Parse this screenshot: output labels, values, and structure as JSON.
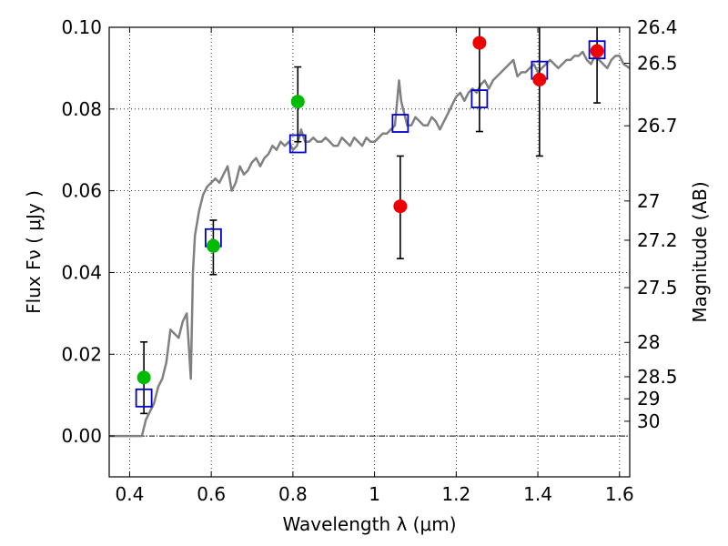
{
  "chart_data": {
    "type": "scatter",
    "xlabel": "Wavelength  λ (μm)",
    "ylabel": "Flux  Fν  ( μJy )",
    "y2label": "Magnitude (AB)",
    "xlim": [
      0.35,
      1.625
    ],
    "ylim": [
      -0.01,
      0.1
    ],
    "grid": true,
    "xticks": [
      {
        "value": 0.4,
        "label": "0.4"
      },
      {
        "value": 0.6,
        "label": "0.6"
      },
      {
        "value": 0.8,
        "label": "0.8"
      },
      {
        "value": 1.0,
        "label": "1"
      },
      {
        "value": 1.2,
        "label": "1.2"
      },
      {
        "value": 1.4,
        "label": "1.4"
      },
      {
        "value": 1.6,
        "label": "1.6"
      }
    ],
    "yticks": [
      {
        "value": 0.0,
        "label": "0.00"
      },
      {
        "value": 0.02,
        "label": "0.02"
      },
      {
        "value": 0.04,
        "label": "0.04"
      },
      {
        "value": 0.06,
        "label": "0.06"
      },
      {
        "value": 0.08,
        "label": "0.08"
      },
      {
        "value": 0.1,
        "label": "0.10"
      }
    ],
    "magnitude_ticks": [
      {
        "label": "26.4",
        "flux": 0.1
      },
      {
        "label": "26.5",
        "flux": 0.0912
      },
      {
        "label": "26.7",
        "flux": 0.0759
      },
      {
        "label": "27",
        "flux": 0.0575
      },
      {
        "label": "27.2",
        "flux": 0.0479
      },
      {
        "label": "27.5",
        "flux": 0.0363
      },
      {
        "label": "28",
        "flux": 0.0229
      },
      {
        "label": "28.5",
        "flux": 0.0145
      },
      {
        "label": "29",
        "flux": 0.0091
      },
      {
        "label": "30",
        "flux": 0.0036
      }
    ],
    "series": [
      {
        "kind": "spectrum",
        "color": "#808080",
        "x": [
          0.35,
          0.4,
          0.42,
          0.43,
          0.44,
          0.45,
          0.46,
          0.47,
          0.48,
          0.49,
          0.5,
          0.51,
          0.52,
          0.53,
          0.54,
          0.545,
          0.55,
          0.555,
          0.56,
          0.57,
          0.58,
          0.59,
          0.6,
          0.61,
          0.62,
          0.63,
          0.64,
          0.65,
          0.66,
          0.67,
          0.68,
          0.69,
          0.7,
          0.71,
          0.72,
          0.73,
          0.74,
          0.75,
          0.76,
          0.77,
          0.78,
          0.79,
          0.8,
          0.81,
          0.82,
          0.83,
          0.84,
          0.85,
          0.86,
          0.87,
          0.88,
          0.89,
          0.9,
          0.91,
          0.92,
          0.93,
          0.94,
          0.95,
          0.96,
          0.97,
          0.98,
          0.99,
          1.0,
          1.01,
          1.02,
          1.03,
          1.04,
          1.05,
          1.06,
          1.065,
          1.07,
          1.08,
          1.09,
          1.1,
          1.11,
          1.12,
          1.13,
          1.14,
          1.15,
          1.16,
          1.17,
          1.18,
          1.19,
          1.2,
          1.21,
          1.22,
          1.23,
          1.24,
          1.25,
          1.26,
          1.27,
          1.28,
          1.29,
          1.3,
          1.31,
          1.32,
          1.33,
          1.34,
          1.35,
          1.36,
          1.37,
          1.38,
          1.39,
          1.4,
          1.41,
          1.42,
          1.43,
          1.44,
          1.45,
          1.46,
          1.47,
          1.48,
          1.49,
          1.5,
          1.51,
          1.52,
          1.53,
          1.54,
          1.55,
          1.56,
          1.57,
          1.58,
          1.59,
          1.6,
          1.61,
          1.625
        ],
        "y": [
          0.0,
          0.0,
          0.0,
          0.0,
          0.004,
          0.006,
          0.008,
          0.012,
          0.014,
          0.018,
          0.026,
          0.025,
          0.024,
          0.028,
          0.03,
          0.022,
          0.014,
          0.04,
          0.049,
          0.055,
          0.059,
          0.061,
          0.062,
          0.063,
          0.062,
          0.064,
          0.066,
          0.06,
          0.062,
          0.066,
          0.064,
          0.065,
          0.067,
          0.068,
          0.066,
          0.068,
          0.069,
          0.071,
          0.07,
          0.072,
          0.071,
          0.072,
          0.07,
          0.071,
          0.075,
          0.072,
          0.072,
          0.073,
          0.072,
          0.072,
          0.073,
          0.072,
          0.071,
          0.071,
          0.073,
          0.072,
          0.071,
          0.073,
          0.072,
          0.071,
          0.073,
          0.072,
          0.072,
          0.073,
          0.074,
          0.074,
          0.075,
          0.076,
          0.087,
          0.082,
          0.08,
          0.076,
          0.076,
          0.078,
          0.077,
          0.076,
          0.076,
          0.078,
          0.077,
          0.075,
          0.077,
          0.079,
          0.081,
          0.083,
          0.084,
          0.082,
          0.084,
          0.085,
          0.084,
          0.086,
          0.087,
          0.085,
          0.087,
          0.088,
          0.089,
          0.09,
          0.091,
          0.092,
          0.088,
          0.089,
          0.089,
          0.09,
          0.091,
          0.089,
          0.09,
          0.091,
          0.092,
          0.091,
          0.09,
          0.091,
          0.092,
          0.092,
          0.093,
          0.093,
          0.094,
          0.092,
          0.091,
          0.093,
          0.092,
          0.091,
          0.09,
          0.092,
          0.093,
          0.093,
          0.091,
          0.09
        ]
      },
      {
        "kind": "model-photometry",
        "color": "#0000cc",
        "marker": "square",
        "x": [
          0.435,
          0.605,
          0.812,
          1.063,
          1.257,
          1.404,
          1.545
        ],
        "y": [
          0.0093,
          0.0485,
          0.0715,
          0.0765,
          0.0825,
          0.0895,
          0.0945
        ]
      },
      {
        "kind": "observed-detections",
        "color": "#00bb00",
        "marker": "circle",
        "x": [
          0.435,
          0.605,
          0.812
        ],
        "y": [
          0.0143,
          0.0465,
          0.0818
        ],
        "err_low": [
          0.0055,
          0.0395,
          0.072
        ],
        "err_high": [
          0.023,
          0.0528,
          0.0903
        ]
      },
      {
        "kind": "observed-other",
        "color": "#ee0000",
        "marker": "circle",
        "x": [
          1.063,
          1.257,
          1.404,
          1.545
        ],
        "y": [
          0.0562,
          0.0962,
          0.0872,
          0.0942
        ],
        "err_low": [
          0.0434,
          0.0745,
          0.0685,
          0.0815
        ],
        "err_high": [
          0.0685,
          0.1,
          0.1,
          0.1
        ]
      }
    ]
  }
}
